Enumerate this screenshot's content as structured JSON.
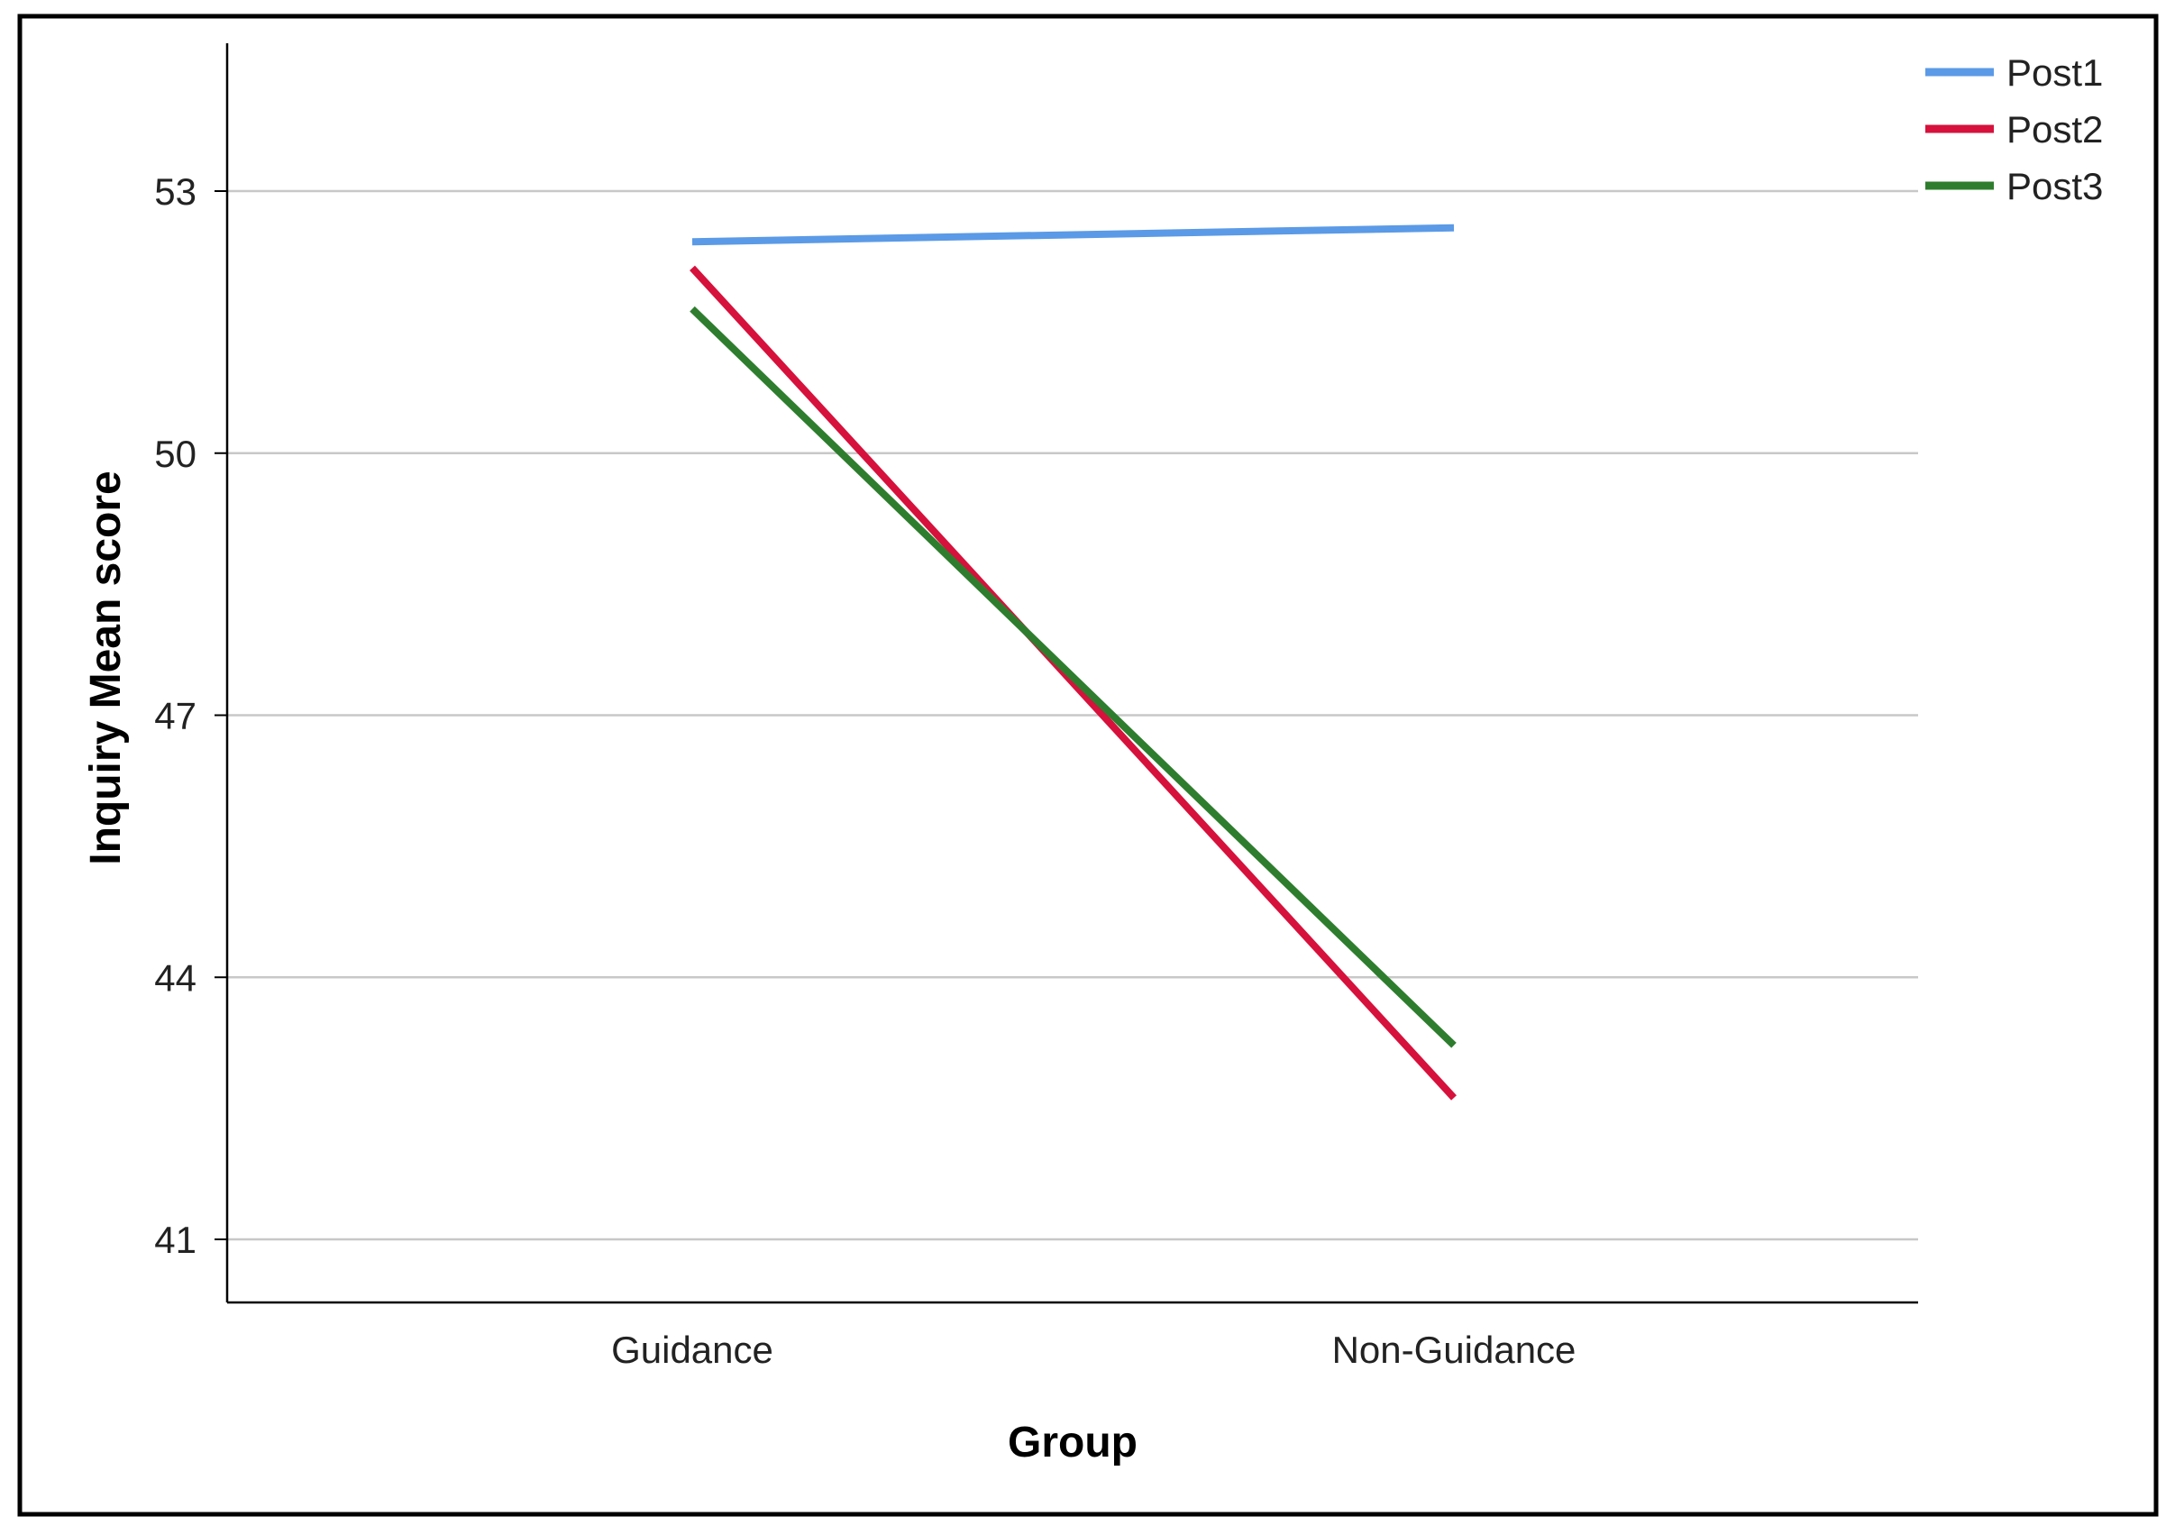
{
  "chart_data": {
    "type": "line",
    "title": "",
    "xlabel": "Group",
    "ylabel": "Inquiry Mean score",
    "categories": [
      "Guidance",
      "Non-Guidance"
    ],
    "ylim": [
      40.3,
      54.7
    ],
    "yticks": [
      41,
      44,
      47,
      50,
      53
    ],
    "grid": true,
    "legend_position": "top-right",
    "series": [
      {
        "name": "Post1",
        "color": "#5b9ae6",
        "values": [
          52.42,
          52.58
        ]
      },
      {
        "name": "Post2",
        "color": "#d6113c",
        "values": [
          52.12,
          42.62
        ]
      },
      {
        "name": "Post3",
        "color": "#2e7d2e",
        "values": [
          51.65,
          43.22
        ]
      }
    ]
  }
}
